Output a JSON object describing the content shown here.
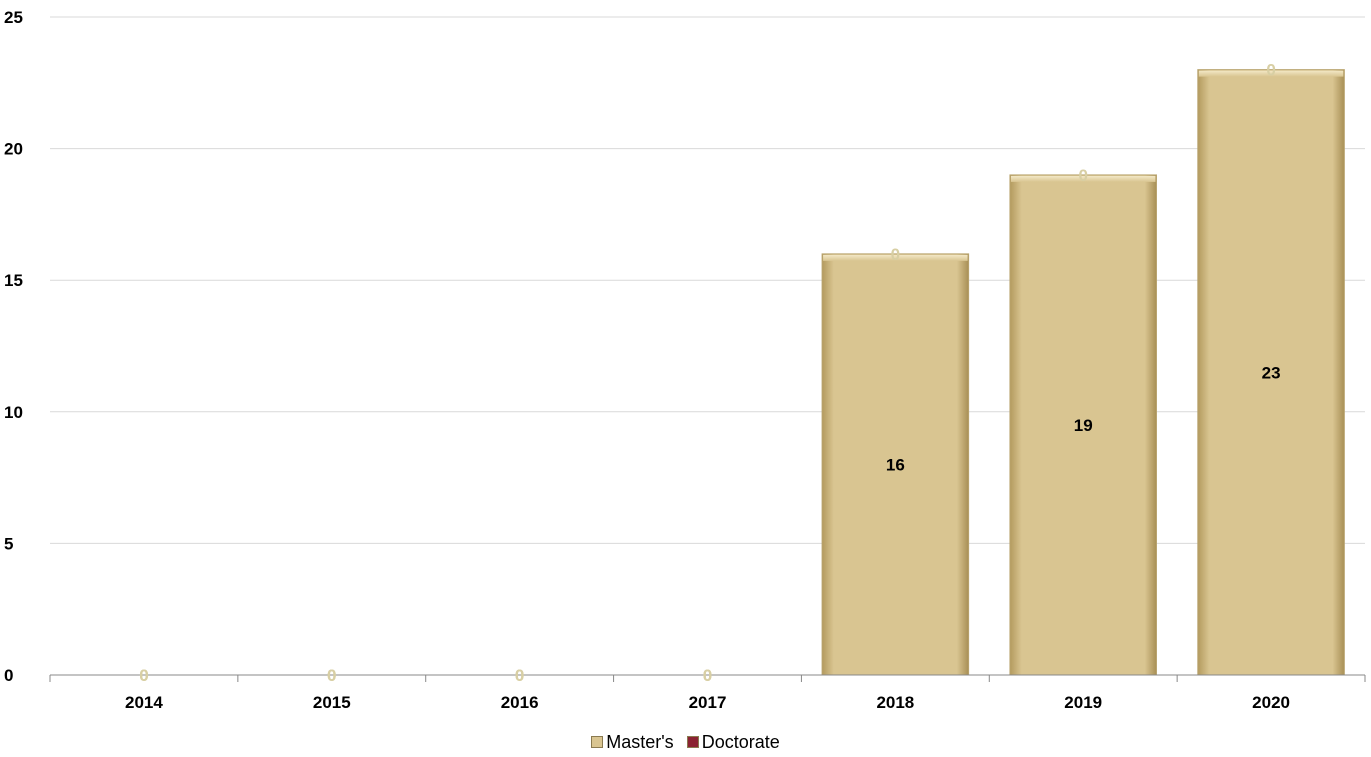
{
  "chart_data": {
    "type": "bar",
    "categories": [
      "2014",
      "2015",
      "2016",
      "2017",
      "2018",
      "2019",
      "2020"
    ],
    "series": [
      {
        "name": "Master's",
        "values": [
          0,
          0,
          0,
          0,
          16,
          19,
          23
        ],
        "color": "#d9c591"
      },
      {
        "name": "Doctorate",
        "values": [
          0,
          0,
          0,
          0,
          0,
          0,
          0
        ],
        "color": "#8b2232"
      }
    ],
    "stacked": true,
    "ylim": [
      0,
      25
    ],
    "yticks": [
      "0",
      "5",
      "10",
      "15",
      "20",
      "25"
    ],
    "grid": true,
    "legend": "bottom",
    "title": "",
    "xlabel": "",
    "ylabel": ""
  }
}
